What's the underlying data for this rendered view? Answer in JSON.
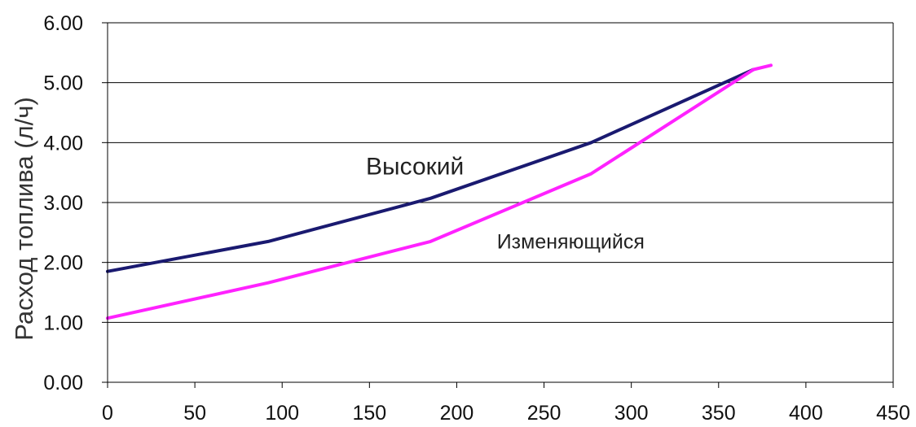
{
  "chart_data": {
    "type": "line",
    "title": "",
    "xlabel": "",
    "ylabel": "Расход топлива (л/ч)",
    "xlim": [
      0,
      450
    ],
    "ylim": [
      0,
      6
    ],
    "x_ticks": [
      "0",
      "50",
      "100",
      "150",
      "200",
      "250",
      "300",
      "350",
      "400",
      "450"
    ],
    "y_ticks": [
      "0.00",
      "1.00",
      "2.00",
      "3.00",
      "4.00",
      "5.00",
      "6.00"
    ],
    "grid": "horizontal",
    "series": [
      {
        "name": "Высокий",
        "color": "#1a1a70",
        "x": [
          0,
          92,
          185,
          277,
          370
        ],
        "y": [
          1.85,
          2.35,
          3.07,
          4.0,
          5.22
        ]
      },
      {
        "name": "Изменяющийся",
        "color": "#ff22ff",
        "x": [
          0,
          92,
          185,
          277,
          370,
          380
        ],
        "y": [
          1.07,
          1.66,
          2.35,
          3.48,
          5.22,
          5.29
        ]
      }
    ]
  }
}
